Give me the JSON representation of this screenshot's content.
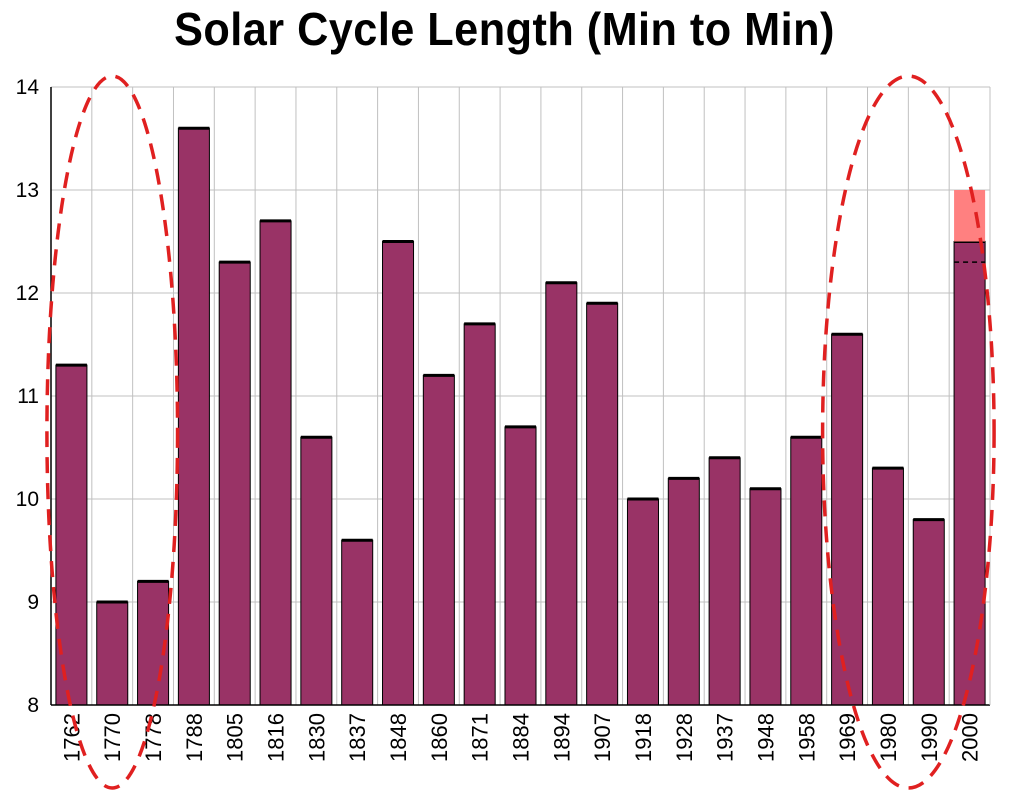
{
  "chart_data": {
    "type": "bar",
    "title": "Solar Cycle Length (Min to Min)",
    "xlabel": "",
    "ylabel": "",
    "categories": [
      "1762",
      "1770",
      "1778",
      "1788",
      "1805",
      "1816",
      "1830",
      "1837",
      "1848",
      "1860",
      "1871",
      "1884",
      "1894",
      "1907",
      "1918",
      "1928",
      "1937",
      "1948",
      "1958",
      "1969",
      "1980",
      "1990",
      "2000"
    ],
    "values": [
      11.3,
      9.0,
      9.2,
      13.6,
      12.3,
      12.7,
      10.6,
      9.6,
      12.5,
      11.2,
      11.7,
      10.7,
      12.1,
      11.9,
      10.0,
      10.2,
      10.4,
      10.1,
      10.6,
      11.6,
      10.3,
      9.8,
      12.5
    ],
    "extension": {
      "category": "2000",
      "from": 12.5,
      "to": 13.0,
      "color": "#ff8080"
    },
    "dashed_marker": {
      "category": "2000",
      "value": 12.3
    },
    "ylim": [
      8,
      14
    ],
    "yticks": [
      "8",
      "9",
      "10",
      "11",
      "12",
      "13",
      "14"
    ],
    "grid": true,
    "legend": "none",
    "colors": {
      "bar": "#993366",
      "bar_edge": "#000000",
      "extension": "#ff8080",
      "grid": "#c0c0c0",
      "ellipse": "#e02020"
    },
    "annotations": [
      {
        "type": "dashed-ellipse",
        "covers": [
          "1762",
          "1778"
        ]
      },
      {
        "type": "dashed-ellipse",
        "covers": [
          "1969",
          "2000"
        ]
      }
    ]
  }
}
